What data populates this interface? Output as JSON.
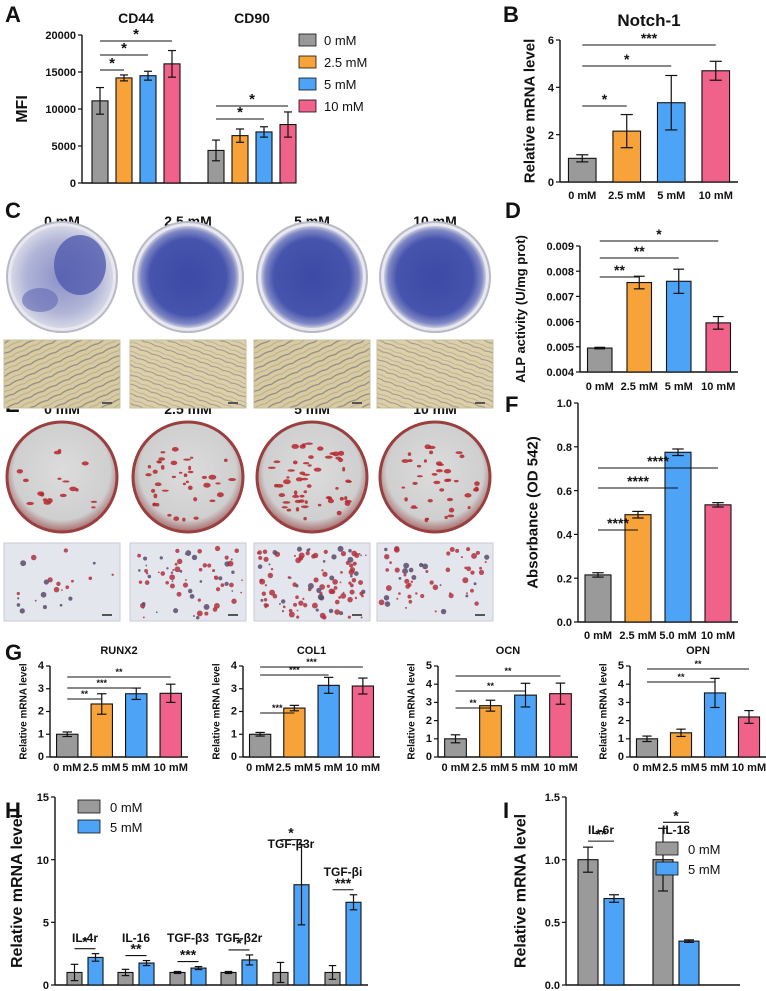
{
  "colors": {
    "grey": "#9a9a9a",
    "orange": "#f7a33a",
    "blue": "#4da3f5",
    "pink": "#f0628a"
  },
  "panel_letters": [
    "A",
    "B",
    "C",
    "D",
    "E",
    "F",
    "G",
    "H",
    "I"
  ],
  "images": {
    "C": {
      "conditions": [
        "0 mM",
        "2.5 mM",
        "5 mM",
        "10 mM"
      ],
      "stain": "ALP staining (blue)"
    },
    "E": {
      "conditions": [
        "0 mM",
        "2.5 mM",
        "5 mM",
        "10 mM"
      ],
      "stain": "Alizarin red staining"
    }
  },
  "chart_data": [
    {
      "id": "A",
      "type": "bar",
      "ylabel": "MFI",
      "ylim": [
        0,
        20000
      ],
      "yticks": [
        0,
        5000,
        10000,
        15000,
        20000
      ],
      "groups": [
        "CD44",
        "CD90"
      ],
      "legend": [
        "0 mM",
        "2.5 mM",
        "5 mM",
        "10 mM"
      ],
      "legend_position": "right",
      "series": [
        {
          "name": "0 mM",
          "values": [
            11100,
            4400
          ],
          "errors": [
            1800,
            1400
          ]
        },
        {
          "name": "2.5 mM",
          "values": [
            14200,
            6400
          ],
          "errors": [
            400,
            900
          ]
        },
        {
          "name": "5 mM",
          "values": [
            14500,
            6900
          ],
          "errors": [
            600,
            700
          ]
        },
        {
          "name": "10 mM",
          "values": [
            16100,
            7900
          ],
          "errors": [
            1800,
            1700
          ]
        }
      ],
      "significance": [
        {
          "group": 0,
          "from": 0,
          "to": 1,
          "label": "*"
        },
        {
          "group": 0,
          "from": 0,
          "to": 2,
          "label": "*"
        },
        {
          "group": 0,
          "from": 0,
          "to": 3,
          "label": "*"
        },
        {
          "group": 1,
          "from": 0,
          "to": 2,
          "label": "*"
        },
        {
          "group": 1,
          "from": 0,
          "to": 3,
          "label": "*"
        }
      ]
    },
    {
      "id": "B",
      "type": "bar",
      "title": "Notch-1",
      "ylabel": "Relative mRNA level",
      "ylim": [
        0,
        6
      ],
      "yticks": [
        0,
        2,
        4,
        6
      ],
      "categories": [
        "0 mM",
        "2.5 mM",
        "5 mM",
        "10 mM"
      ],
      "values": [
        1.0,
        2.15,
        3.35,
        4.7
      ],
      "errors": [
        0.15,
        0.7,
        1.15,
        0.4
      ],
      "significance": [
        {
          "from": 0,
          "to": 1,
          "label": "*"
        },
        {
          "from": 0,
          "to": 2,
          "label": "*"
        },
        {
          "from": 0,
          "to": 3,
          "label": "***"
        }
      ]
    },
    {
      "id": "D",
      "type": "bar",
      "ylabel": "ALP activity (U/mg prot)",
      "ylim": [
        0.004,
        0.009
      ],
      "yticks": [
        "0.004",
        "0.005",
        "0.006",
        "0.007",
        "0.008",
        "0.009"
      ],
      "categories": [
        "0 mM",
        "2.5 mM",
        "5 mM",
        "10 mM"
      ],
      "values": [
        0.00495,
        0.00755,
        0.0076,
        0.00595
      ],
      "errors": [
        3e-05,
        0.00025,
        0.00048,
        0.00025
      ],
      "significance": [
        {
          "from": 0,
          "to": 1,
          "label": "**"
        },
        {
          "from": 0,
          "to": 2,
          "label": "**"
        },
        {
          "from": 0,
          "to": 3,
          "label": "*"
        }
      ]
    },
    {
      "id": "F",
      "type": "bar",
      "ylabel": "Absorbance (OD 542)",
      "ylim": [
        0,
        1.0
      ],
      "yticks": [
        "0.0",
        "0.2",
        "0.4",
        "0.6",
        "0.8",
        "1.0"
      ],
      "categories": [
        "0 mM",
        "2.5 mM",
        "5.0 mM",
        "10 mM"
      ],
      "values": [
        0.215,
        0.49,
        0.775,
        0.535
      ],
      "errors": [
        0.01,
        0.015,
        0.015,
        0.01
      ],
      "significance": [
        {
          "from": 0,
          "to": 1,
          "label": "****"
        },
        {
          "from": 0,
          "to": 2,
          "label": "****"
        },
        {
          "from": 0,
          "to": 3,
          "label": "****"
        }
      ]
    },
    {
      "id": "G1",
      "type": "bar",
      "title": "RUNX2",
      "ylabel": "Relative mRNA level",
      "ylim": [
        0,
        4
      ],
      "yticks": [
        0,
        1,
        2,
        3,
        4
      ],
      "categories": [
        "0 mM",
        "2.5 mM",
        "5 mM",
        "10 mM"
      ],
      "values": [
        1.0,
        2.33,
        2.78,
        2.8
      ],
      "errors": [
        0.1,
        0.45,
        0.25,
        0.4
      ],
      "significance": [
        {
          "from": 0,
          "to": 1,
          "label": "**"
        },
        {
          "from": 0,
          "to": 2,
          "label": "***"
        },
        {
          "from": 0,
          "to": 3,
          "label": "**"
        }
      ]
    },
    {
      "id": "G2",
      "type": "bar",
      "title": "COL1",
      "ylabel": "Relative mRNA level",
      "ylim": [
        0,
        4
      ],
      "yticks": [
        0,
        1,
        2,
        3,
        4
      ],
      "categories": [
        "0 mM",
        "2.5 mM",
        "5 mM",
        "10 mM"
      ],
      "values": [
        1.0,
        2.15,
        3.15,
        3.12
      ],
      "errors": [
        0.08,
        0.12,
        0.35,
        0.35
      ],
      "significance": [
        {
          "from": 0,
          "to": 1,
          "label": "***"
        },
        {
          "from": 0,
          "to": 2,
          "label": "***"
        },
        {
          "from": 0,
          "to": 3,
          "label": "***"
        }
      ]
    },
    {
      "id": "G3",
      "type": "bar",
      "title": "OCN",
      "ylabel": "Relative mRNA level",
      "ylim": [
        0,
        5
      ],
      "yticks": [
        0,
        1,
        2,
        3,
        4,
        5
      ],
      "categories": [
        "0 mM",
        "2.5 mM",
        "5 mM",
        "10 mM"
      ],
      "values": [
        1.0,
        2.82,
        3.4,
        3.48
      ],
      "errors": [
        0.22,
        0.3,
        0.65,
        0.58
      ],
      "significance": [
        {
          "from": 0,
          "to": 1,
          "label": "**"
        },
        {
          "from": 0,
          "to": 2,
          "label": "**"
        },
        {
          "from": 0,
          "to": 3,
          "label": "**"
        }
      ]
    },
    {
      "id": "G4",
      "type": "bar",
      "title": "OPN",
      "ylabel": "Relative mRNA level",
      "ylim": [
        0,
        5
      ],
      "yticks": [
        0,
        1,
        2,
        3,
        4,
        5
      ],
      "categories": [
        "0 mM",
        "2.5 mM",
        "5 mM",
        "10 mM"
      ],
      "values": [
        1.0,
        1.33,
        3.52,
        2.2
      ],
      "errors": [
        0.15,
        0.2,
        0.8,
        0.35
      ],
      "significance": [
        {
          "from": 0,
          "to": 2,
          "label": "**"
        },
        {
          "from": 0,
          "to": 3,
          "label": "**"
        }
      ]
    },
    {
      "id": "H",
      "type": "bar",
      "ylabel": "Relative mRNA level",
      "ylim": [
        0,
        15
      ],
      "yticks": [
        0,
        5,
        10,
        15
      ],
      "groups": [
        "IL-4r",
        "IL-16",
        "TGF-β3",
        "TGF-β2r",
        "TGF-β3r",
        "TGF-βi"
      ],
      "legend": [
        "0 mM",
        "5 mM"
      ],
      "legend_position": "top-left",
      "series": [
        {
          "name": "0 mM",
          "values": [
            1.0,
            1.0,
            1.0,
            1.0,
            1.0,
            1.0
          ],
          "errors": [
            0.65,
            0.25,
            0.08,
            0.08,
            0.8,
            0.55
          ]
        },
        {
          "name": "5 mM",
          "values": [
            2.2,
            1.75,
            1.35,
            2.0,
            8.0,
            6.6
          ],
          "errors": [
            0.3,
            0.2,
            0.12,
            0.4,
            3.2,
            0.6
          ]
        }
      ],
      "significance": [
        "*",
        "**",
        "***",
        "*",
        "*",
        "***"
      ]
    },
    {
      "id": "I",
      "type": "bar",
      "ylabel": "Relative mRNA level",
      "ylim": [
        0,
        1.5
      ],
      "yticks": [
        "0.0",
        "0.5",
        "1.0",
        "1.5"
      ],
      "groups": [
        "IL-6r",
        "IL-18"
      ],
      "legend": [
        "0 mM",
        "5 mM"
      ],
      "legend_position": "top-right",
      "series": [
        {
          "name": "0 mM",
          "values": [
            1.0,
            1.0
          ],
          "errors": [
            0.1,
            0.25
          ]
        },
        {
          "name": "5 mM",
          "values": [
            0.69,
            0.35
          ],
          "errors": [
            0.03,
            0.01
          ]
        }
      ],
      "significance": [
        "**",
        "*"
      ]
    }
  ]
}
